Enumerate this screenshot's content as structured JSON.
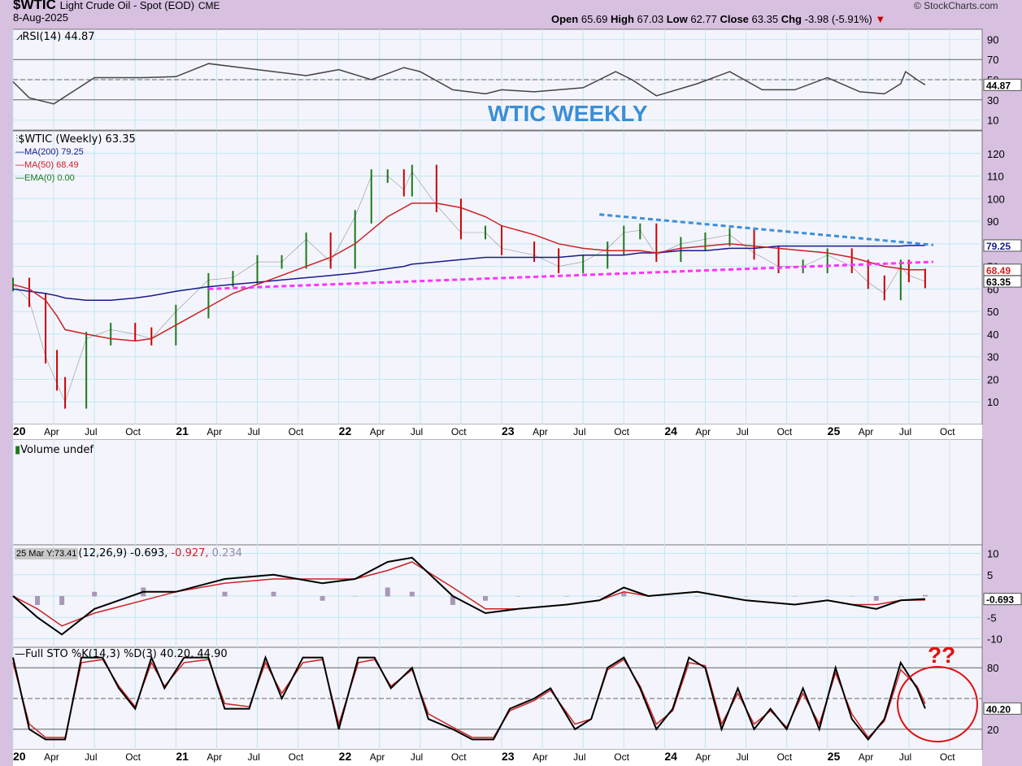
{
  "header": {
    "symbol": "$WTIC",
    "description": "Light Crude Oil - Spot (EOD)",
    "exchange": "CME",
    "date": "8-Aug-2025",
    "watermark": "© StockCharts.com",
    "open_label": "Open",
    "open": "65.69",
    "high_label": "High",
    "high": "67.03",
    "low_label": "Low",
    "low": "62.77",
    "close_label": "Close",
    "close": "63.35",
    "chg_label": "Chg",
    "chg": "-3.98 (-5.91%)",
    "down_color": "#cc0000"
  },
  "annotations": {
    "title": "WTIC WEEKLY",
    "title_color": "#3a8fd6",
    "question": "??",
    "question_color": "#e01010"
  },
  "chart_data": [
    {
      "type": "line",
      "panel": "rsi",
      "legend": "RSI(14) 44.87",
      "last_value_label": "44.87",
      "ylim": [
        0,
        100
      ],
      "y_ticks": [
        "90",
        "70",
        "50",
        "30",
        "10"
      ],
      "ref_lines": [
        70,
        50,
        30
      ],
      "x": [
        2020.0,
        2020.1,
        2020.25,
        2020.5,
        2020.8,
        2021.0,
        2021.2,
        2021.5,
        2021.8,
        2022.0,
        2022.2,
        2022.4,
        2022.5,
        2022.7,
        2022.9,
        2023.0,
        2023.2,
        2023.5,
        2023.7,
        2023.8,
        2023.95,
        2024.2,
        2024.4,
        2024.6,
        2024.8,
        2025.0,
        2025.2,
        2025.35,
        2025.45,
        2025.48,
        2025.55,
        2025.6
      ],
      "values": [
        48,
        32,
        26,
        52,
        52,
        53,
        66,
        60,
        54,
        60,
        50,
        62,
        58,
        40,
        36,
        40,
        38,
        42,
        58,
        50,
        34,
        46,
        58,
        40,
        40,
        52,
        38,
        36,
        46,
        58,
        50,
        44.87
      ]
    },
    {
      "type": "bar",
      "panel": "price",
      "legend": "$WTIC (Weekly) 63.35",
      "overlays": [
        {
          "name": "MA(200) 79.25",
          "color": "#1a1a8c"
        },
        {
          "name": "MA(50) 68.49",
          "color": "#cc2222"
        },
        {
          "name": "EMA(0) 0.00",
          "color": "#1a7a1a"
        }
      ],
      "last_value_labels": [
        "79.25",
        "68.49",
        "63.35"
      ],
      "ylim": [
        0,
        130
      ],
      "y_ticks": [
        "120",
        "110",
        "100",
        "90",
        "80",
        "70",
        "60",
        "50",
        "40",
        "30",
        "20",
        "10"
      ],
      "x_ticks": [
        "20",
        "Apr",
        "Jul",
        "Oct",
        "21",
        "Apr",
        "Jul",
        "Oct",
        "22",
        "Apr",
        "Jul",
        "Oct",
        "23",
        "Apr",
        "Jul",
        "Oct",
        "24",
        "Apr",
        "Jul",
        "Oct",
        "25",
        "Apr",
        "Jul",
        "Oct"
      ],
      "x": [
        2020.0,
        2020.1,
        2020.2,
        2020.27,
        2020.32,
        2020.45,
        2020.6,
        2020.75,
        2020.85,
        2021.0,
        2021.2,
        2021.35,
        2021.5,
        2021.65,
        2021.8,
        2021.95,
        2022.1,
        2022.2,
        2022.3,
        2022.4,
        2022.45,
        2022.6,
        2022.75,
        2022.9,
        2023.0,
        2023.2,
        2023.35,
        2023.5,
        2023.65,
        2023.75,
        2023.85,
        2023.95,
        2024.1,
        2024.25,
        2024.4,
        2024.55,
        2024.7,
        2024.85,
        2025.0,
        2025.15,
        2025.25,
        2025.35,
        2025.45,
        2025.5,
        2025.6
      ],
      "close": [
        62,
        55,
        30,
        18,
        10,
        38,
        42,
        40,
        38,
        50,
        64,
        65,
        72,
        72,
        82,
        72,
        92,
        110,
        110,
        104,
        112,
        97,
        85,
        85,
        78,
        75,
        70,
        72,
        78,
        85,
        86,
        75,
        80,
        82,
        84,
        76,
        70,
        70,
        75,
        70,
        63,
        58,
        70,
        66,
        63.35
      ],
      "ma200": [
        60,
        59,
        58,
        57,
        56,
        55,
        55,
        56,
        57,
        59,
        61,
        62,
        63,
        64,
        65,
        66,
        67,
        68,
        69,
        70,
        71,
        72,
        73,
        74,
        74,
        74,
        74,
        75,
        75,
        75,
        76,
        76,
        77,
        77,
        78,
        78,
        79,
        79,
        79,
        79,
        79,
        79,
        79,
        79.25,
        79.25
      ],
      "ma50": [
        62,
        60,
        55,
        48,
        42,
        40,
        38,
        37,
        38,
        44,
        52,
        58,
        62,
        66,
        70,
        74,
        80,
        86,
        92,
        96,
        98,
        98,
        96,
        92,
        88,
        84,
        80,
        78,
        77,
        77,
        77,
        76,
        78,
        79,
        80,
        79,
        78,
        77,
        76,
        74,
        72,
        70,
        69,
        68.49,
        68.49
      ],
      "trendlines": [
        {
          "color": "#3d8fd8",
          "from": [
            2023.6,
            93
          ],
          "to": [
            2025.65,
            79.5
          ]
        },
        {
          "color": "#ff33ff",
          "from": [
            2021.2,
            60
          ],
          "to": [
            2025.65,
            72
          ]
        }
      ]
    },
    {
      "type": "bar",
      "panel": "volume",
      "legend": "Volume undef"
    },
    {
      "type": "line",
      "panel": "macd",
      "legend_tag": "25 Mar Y:73.41",
      "legend": "(12,26,9) -0.693,",
      "signal_label": "-0.927,",
      "hist_label": "0.234",
      "last_value_label": "-0.693",
      "ylim": [
        -12,
        12
      ],
      "y_ticks": [
        "10",
        "5",
        "0",
        "-5",
        "-10"
      ],
      "x": [
        2020.0,
        2020.15,
        2020.3,
        2020.5,
        2020.8,
        2021.0,
        2021.3,
        2021.6,
        2021.9,
        2022.1,
        2022.3,
        2022.45,
        2022.7,
        2022.9,
        2023.1,
        2023.4,
        2023.6,
        2023.75,
        2023.9,
        2024.2,
        2024.5,
        2024.8,
        2025.0,
        2025.15,
        2025.3,
        2025.45,
        2025.6
      ],
      "macd": [
        0,
        -5,
        -9,
        -3,
        1,
        1,
        4,
        5,
        3,
        4,
        8,
        9,
        0,
        -4,
        -3,
        -2,
        -1,
        2,
        0,
        1,
        -1,
        -2,
        -1,
        -2,
        -3,
        -1,
        -0.693
      ],
      "signal": [
        0,
        -3,
        -7,
        -4,
        -1,
        1,
        3,
        4,
        4,
        4,
        6,
        8,
        2,
        -3,
        -3,
        -2,
        -1,
        1,
        0,
        1,
        -1,
        -2,
        -1,
        -2,
        -2,
        -1,
        -0.927
      ]
    },
    {
      "type": "line",
      "panel": "stochastic",
      "legend": "Full STO %K(14,3) %D(3) 40.20, 44.90",
      "last_value_label": "40.20",
      "ylim": [
        0,
        100
      ],
      "y_ticks": [
        "80",
        "20"
      ],
      "ref_lines": [
        80,
        50,
        20
      ],
      "x": [
        2020.0,
        2020.1,
        2020.2,
        2020.32,
        2020.42,
        2020.55,
        2020.65,
        2020.75,
        2020.85,
        2020.93,
        2021.05,
        2021.2,
        2021.3,
        2021.45,
        2021.55,
        2021.65,
        2021.78,
        2021.9,
        2022.0,
        2022.12,
        2022.22,
        2022.32,
        2022.45,
        2022.55,
        2022.7,
        2022.82,
        2022.95,
        2023.05,
        2023.2,
        2023.3,
        2023.45,
        2023.55,
        2023.65,
        2023.75,
        2023.85,
        2023.95,
        2024.05,
        2024.15,
        2024.25,
        2024.35,
        2024.45,
        2024.55,
        2024.65,
        2024.75,
        2024.85,
        2024.95,
        2025.05,
        2025.15,
        2025.25,
        2025.35,
        2025.45,
        2025.55,
        2025.6
      ],
      "k": [
        90,
        20,
        10,
        10,
        90,
        90,
        60,
        40,
        90,
        60,
        90,
        90,
        40,
        40,
        90,
        50,
        90,
        90,
        20,
        90,
        90,
        60,
        80,
        30,
        20,
        10,
        10,
        40,
        50,
        60,
        20,
        30,
        80,
        90,
        60,
        20,
        40,
        90,
        80,
        20,
        60,
        20,
        40,
        20,
        60,
        20,
        80,
        30,
        10,
        30,
        85,
        60,
        40.2
      ],
      "d": [
        85,
        25,
        12,
        12,
        85,
        88,
        62,
        42,
        85,
        62,
        85,
        88,
        45,
        42,
        85,
        55,
        85,
        88,
        25,
        85,
        88,
        62,
        78,
        35,
        22,
        12,
        12,
        38,
        48,
        58,
        25,
        30,
        78,
        88,
        62,
        25,
        38,
        85,
        82,
        25,
        55,
        25,
        38,
        22,
        55,
        25,
        75,
        35,
        12,
        28,
        78,
        62,
        44.9
      ]
    }
  ]
}
